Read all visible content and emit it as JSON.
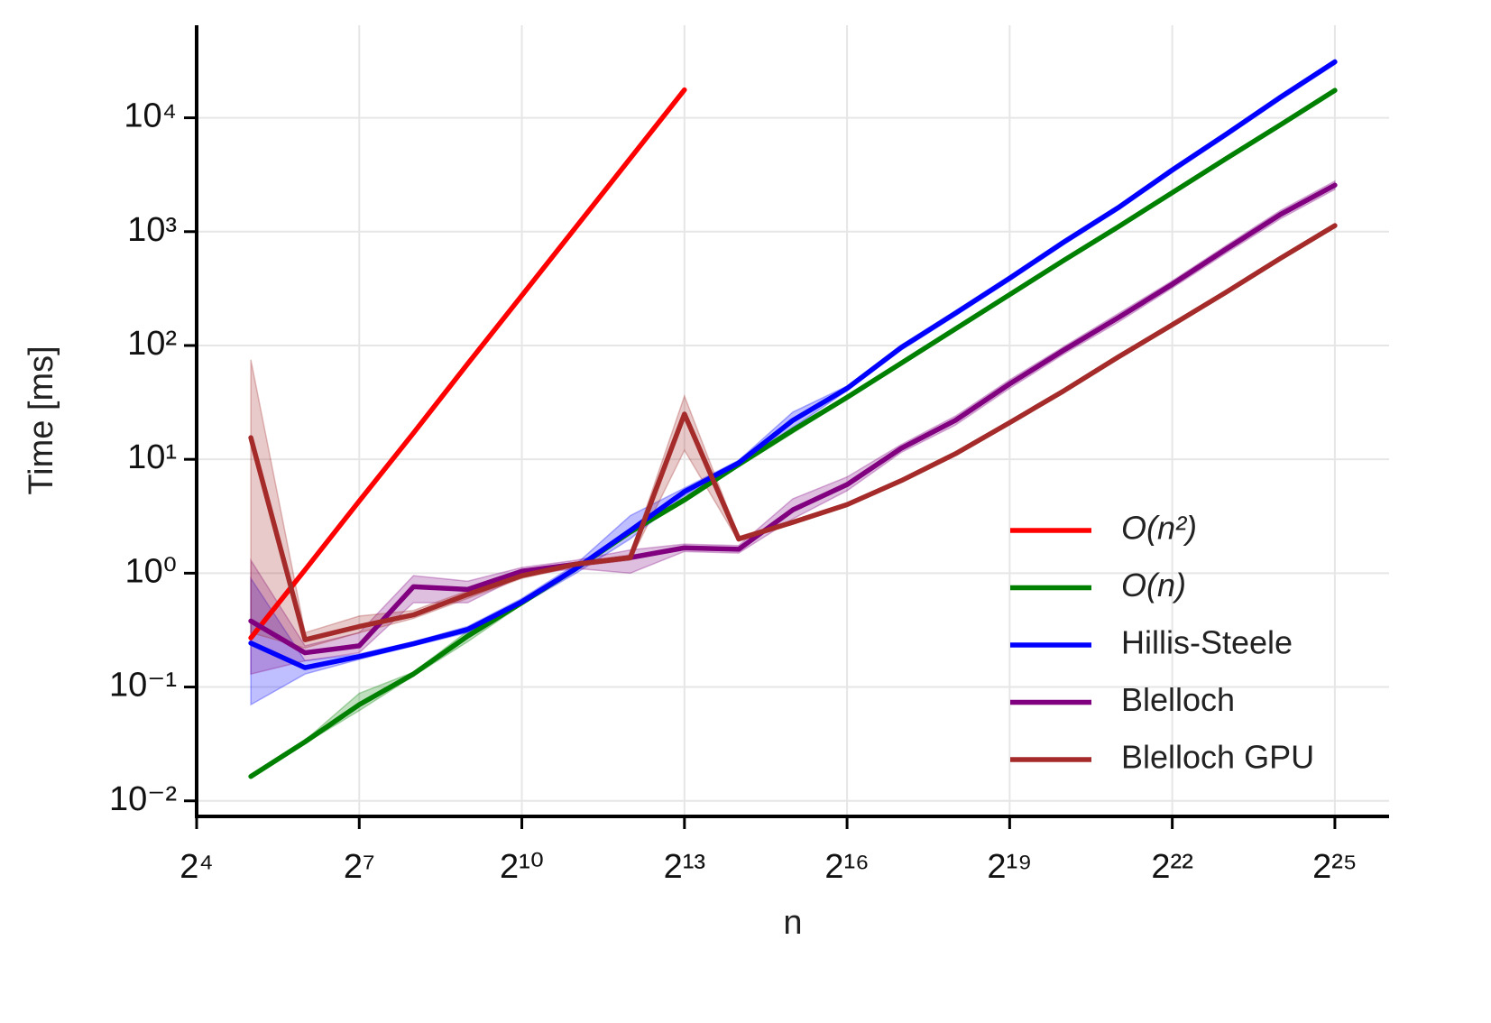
{
  "chart_data": {
    "type": "line",
    "xlabel": "n",
    "ylabel": "Time [ms]",
    "xscale": "log2",
    "yscale": "log",
    "grid": true,
    "legend": "lower right",
    "xlim": [
      16,
      67108864
    ],
    "ylim": [
      0.0073,
      65000
    ],
    "xticks": [
      {
        "value": 16,
        "label": "2⁴"
      },
      {
        "value": 128,
        "label": "2⁷"
      },
      {
        "value": 1024,
        "label": "2¹⁰"
      },
      {
        "value": 8192,
        "label": "2¹³"
      },
      {
        "value": 65536,
        "label": "2¹⁶"
      },
      {
        "value": 524288,
        "label": "2¹⁹"
      },
      {
        "value": 4194304,
        "label": "2²²"
      },
      {
        "value": 33554432,
        "label": "2²⁵"
      }
    ],
    "yticks": [
      {
        "value": 0.01,
        "label": "10⁻²"
      },
      {
        "value": 0.1,
        "label": "10⁻¹"
      },
      {
        "value": 1,
        "label": "10⁰"
      },
      {
        "value": 10,
        "label": "10¹"
      },
      {
        "value": 100,
        "label": "10²"
      },
      {
        "value": 1000,
        "label": "10³"
      },
      {
        "value": 10000,
        "label": "10⁴"
      }
    ],
    "x": [
      32,
      64,
      128,
      256,
      512,
      1024,
      2048,
      4096,
      8192,
      16384,
      32768,
      65536,
      131072,
      262144,
      524288,
      1048576,
      2097152,
      4194304,
      8388608,
      16777216,
      33554432
    ],
    "series": [
      {
        "name": "O(n²)",
        "color": "#ff0000",
        "values": [
          0.27,
          1.07,
          4.3,
          17,
          69,
          275,
          1100,
          4400,
          17600,
          null,
          null,
          null,
          null,
          null,
          null,
          null,
          null,
          null,
          null,
          null,
          null
        ]
      },
      {
        "name": "O(n)",
        "color": "#008000",
        "values": [
          0.0164,
          0.033,
          0.07,
          0.13,
          0.28,
          0.55,
          1.1,
          2.3,
          4.4,
          9,
          18,
          35,
          70,
          140,
          280,
          560,
          1100,
          2200,
          4400,
          8700,
          17400
        ],
        "lower": [
          0.0158,
          0.032,
          0.062,
          0.125,
          0.25,
          0.53,
          1.05,
          2.2,
          4.2,
          8.6,
          17,
          34,
          67,
          135,
          270,
          540,
          1060,
          2120,
          4250,
          8400,
          16800
        ],
        "upper": [
          0.017,
          0.034,
          0.088,
          0.135,
          0.31,
          0.57,
          1.15,
          2.4,
          4.6,
          9.4,
          19,
          36,
          73,
          145,
          290,
          580,
          1140,
          2280,
          4550,
          9000,
          18000
        ]
      },
      {
        "name": "Hillis-Steele",
        "color": "#0000ff",
        "values": [
          0.243,
          0.148,
          0.185,
          0.24,
          0.32,
          0.56,
          1.1,
          2.37,
          5.2,
          9.3,
          22,
          42,
          96,
          192,
          390,
          810,
          1620,
          3480,
          7200,
          15200,
          31000
        ],
        "lower": [
          0.07,
          0.13,
          0.175,
          0.23,
          0.3,
          0.53,
          1.0,
          2.0,
          4.8,
          8.8,
          19,
          40,
          91,
          182,
          370,
          770,
          1540,
          3300,
          6850,
          14400,
          29500
        ],
        "upper": [
          0.9,
          0.17,
          0.195,
          0.25,
          0.34,
          0.6,
          1.2,
          3.2,
          5.6,
          9.8,
          26,
          44,
          101,
          202,
          410,
          850,
          1700,
          3650,
          7550,
          16000,
          32500
        ]
      },
      {
        "name": "Blelloch",
        "color": "#800080",
        "values": [
          0.38,
          0.2,
          0.23,
          0.76,
          0.72,
          1.04,
          1.2,
          1.37,
          1.67,
          1.62,
          3.6,
          6.0,
          12.5,
          22,
          46,
          91,
          175,
          345,
          705,
          1420,
          2560
        ],
        "lower": [
          0.13,
          0.17,
          0.2,
          0.55,
          0.55,
          0.95,
          1.1,
          1.0,
          1.55,
          1.5,
          3.0,
          5.3,
          11.5,
          20,
          42,
          84,
          160,
          320,
          650,
          1300,
          2350
        ],
        "upper": [
          1.3,
          0.23,
          0.3,
          0.95,
          0.85,
          1.12,
          1.3,
          1.6,
          1.8,
          1.75,
          4.5,
          7.0,
          13.5,
          24,
          50,
          98,
          190,
          370,
          760,
          1540,
          2780
        ]
      },
      {
        "name": "Blelloch GPU",
        "color": "#a52a2a",
        "values": [
          15.5,
          0.26,
          0.34,
          0.43,
          0.65,
          0.95,
          1.2,
          1.37,
          25,
          2.0,
          2.8,
          4.0,
          6.5,
          11.2,
          21,
          40,
          79,
          152,
          295,
          585,
          1130
        ],
        "lower": [
          0.3,
          0.22,
          0.3,
          0.4,
          0.6,
          0.9,
          1.15,
          1.3,
          12,
          1.9,
          2.7,
          3.85,
          6.3,
          10.8,
          20.3,
          38.7,
          76,
          147,
          285,
          565,
          1095
        ],
        "upper": [
          75,
          0.3,
          0.42,
          0.47,
          0.7,
          1.0,
          1.25,
          1.45,
          36,
          2.1,
          2.9,
          4.15,
          6.7,
          11.6,
          21.7,
          41.3,
          82,
          157,
          305,
          605,
          1165
        ]
      }
    ]
  }
}
